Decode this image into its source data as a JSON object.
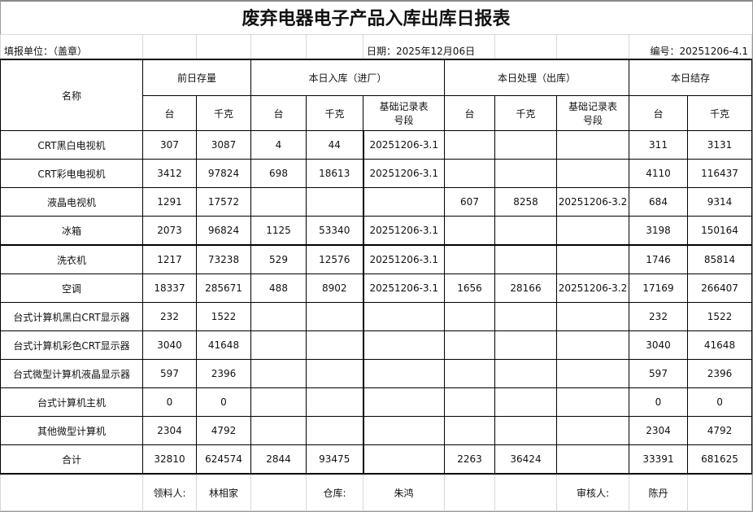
{
  "title": "废弃电器电子产品入库出库日报表",
  "info": {
    "unit": "填报单位：（盖章）",
    "date": "日期：2025年12月06日",
    "number": "编号：20251206-4.1"
  },
  "headers": {
    "name": "名称",
    "groups": [
      "前日存量",
      "本日入库（进厂）",
      "本日处理（出库）",
      "本日结存"
    ],
    "sub": [
      "台",
      "千克",
      "台",
      "千克",
      "基础记录表号段",
      "台",
      "千克",
      "基础记录表号段",
      "台",
      "千克"
    ]
  },
  "rows": [
    [
      "CRT黑白电视机",
      "307",
      "3087",
      "4",
      "44",
      "20251206-3.1",
      "",
      "",
      "",
      "311",
      "3131"
    ],
    [
      "CRT彩电电视机",
      "3412",
      "97824",
      "698",
      "18613",
      "20251206-3.1",
      "",
      "",
      "",
      "4110",
      "116437"
    ],
    [
      "液晶电视机",
      "1291",
      "17572",
      "",
      "",
      "",
      "607",
      "8258",
      "20251206-3.2",
      "684",
      "9314"
    ],
    [
      "冰箱",
      "2073",
      "96824",
      "1125",
      "53340",
      "20251206-3.1",
      "",
      "",
      "",
      "3198",
      "150164"
    ],
    [
      "洗衣机",
      "1217",
      "73238",
      "529",
      "12576",
      "20251206-3.1",
      "",
      "",
      "",
      "1746",
      "85814"
    ],
    [
      "空调",
      "18337",
      "285671",
      "488",
      "8902",
      "20251206-3.1",
      "1656",
      "28166",
      "20251206-3.2",
      "17169",
      "266407"
    ],
    [
      "台式计算机黑白CRT显示器",
      "232",
      "1522",
      "",
      "",
      "",
      "",
      "",
      "",
      "232",
      "1522"
    ],
    [
      "台式计算机彩色CRT显示器",
      "3040",
      "41648",
      "",
      "",
      "",
      "",
      "",
      "",
      "3040",
      "41648"
    ],
    [
      "台式微型计算机液晶显示器",
      "597",
      "2396",
      "",
      "",
      "",
      "",
      "",
      "",
      "597",
      "2396"
    ],
    [
      "台式计算机主机",
      "0",
      "0",
      "",
      "",
      "",
      "",
      "",
      "",
      "0",
      "0"
    ],
    [
      "其他微型计算机",
      "2304",
      "4792",
      "",
      "",
      "",
      "",
      "",
      "",
      "2304",
      "4792"
    ],
    [
      "合计",
      "32810",
      "624574",
      "2844",
      "93475",
      "",
      "2263",
      "36424",
      "",
      "33391",
      "681625"
    ]
  ],
  "footer": {
    "receiver_label": "领料人:",
    "receiver": "林相家",
    "warehouse_label": "仓库:",
    "warehouse": "朱鸿",
    "reviewer_label": "审核人:",
    "reviewer": "陈丹"
  }
}
